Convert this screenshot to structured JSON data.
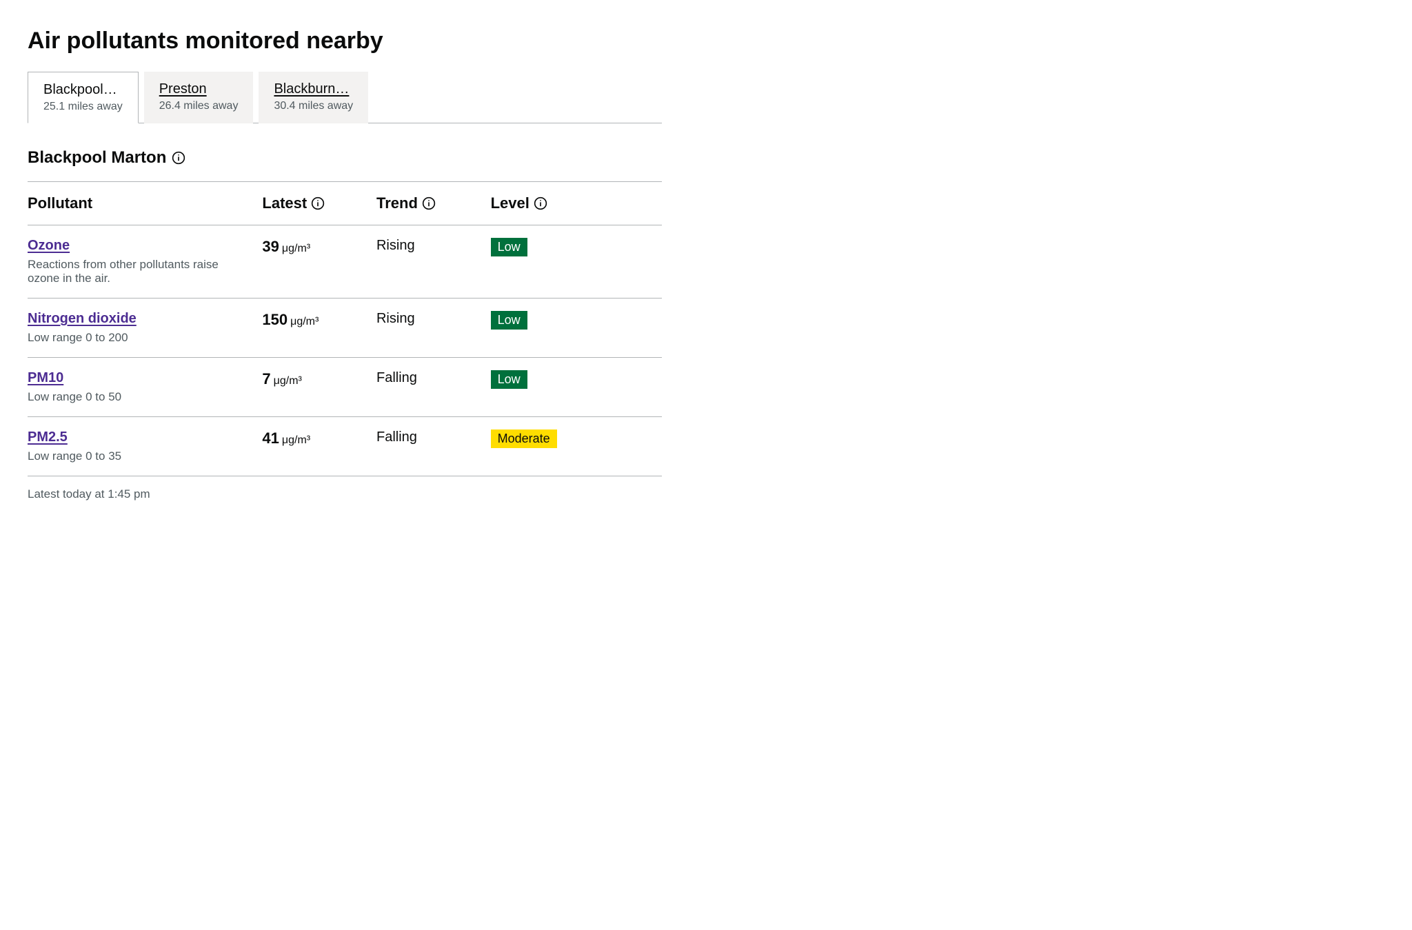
{
  "title": "Air pollutants monitored nearby",
  "tabs": [
    {
      "label": "Blackpool…",
      "sub": "25.1 miles away",
      "active": true
    },
    {
      "label": "Preston",
      "sub": "26.4 miles away",
      "active": false
    },
    {
      "label": "Blackburn…",
      "sub": "30.4 miles away",
      "active": false
    }
  ],
  "station": {
    "name": "Blackpool Marton"
  },
  "table": {
    "headers": {
      "pollutant": "Pollutant",
      "latest": "Latest",
      "trend": "Trend",
      "level": "Level"
    },
    "rows": [
      {
        "name": "Ozone",
        "desc": "Reactions from other pollutants raise ozone in the air.",
        "value": "39",
        "unit": "μg/m³",
        "trend": "Rising",
        "level": "Low",
        "level_bg": "#00703c",
        "level_fg": "#ffffff"
      },
      {
        "name": "Nitrogen dioxide",
        "desc": "Low range 0 to 200",
        "value": "150",
        "unit": "μg/m³",
        "trend": "Rising",
        "level": "Low",
        "level_bg": "#00703c",
        "level_fg": "#ffffff"
      },
      {
        "name": "PM10",
        "desc": "Low range 0 to 50",
        "value": "7",
        "unit": "μg/m³",
        "trend": "Falling",
        "level": "Low",
        "level_bg": "#00703c",
        "level_fg": "#ffffff"
      },
      {
        "name": "PM2.5",
        "desc": "Low range 0 to 35",
        "value": "41",
        "unit": "μg/m³",
        "trend": "Falling",
        "level": "Moderate",
        "level_bg": "#ffdd00",
        "level_fg": "#0b0c0c"
      }
    ]
  },
  "footnote": "Latest today at 1:45 pm",
  "colors": {
    "link": "#4c2c92",
    "border": "#b1b4b6",
    "muted": "#505a5f",
    "tab_inactive_bg": "#f3f2f1"
  }
}
